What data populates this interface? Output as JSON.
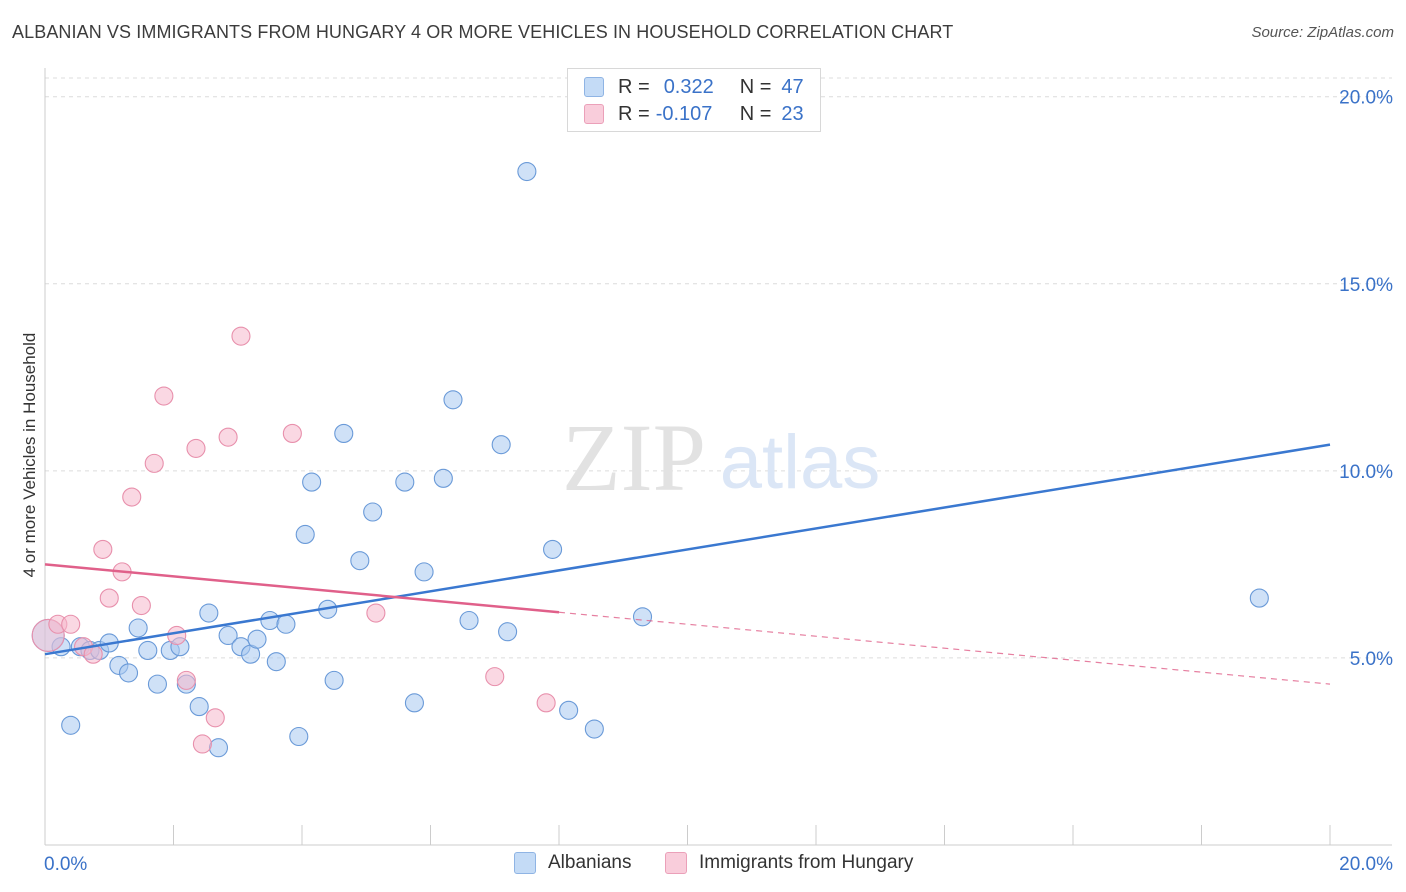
{
  "header": {
    "title": "ALBANIAN VS IMMIGRANTS FROM HUNGARY 4 OR MORE VEHICLES IN HOUSEHOLD CORRELATION CHART",
    "source": "Source: ZipAtlas.com"
  },
  "watermark": {
    "zip": "ZIP",
    "atlas": "atlas"
  },
  "legend_top": {
    "rows": [
      {
        "r_label": "R =",
        "r_value": "0.322",
        "n_label": "N =",
        "n_value": "47",
        "color": "#a8c8f0"
      },
      {
        "r_label": "R =",
        "r_value": "-0.107",
        "n_label": "N =",
        "n_value": "23",
        "color": "#f5b8cc"
      }
    ]
  },
  "legend_bottom": {
    "items": [
      {
        "label": "Albanians",
        "color": "#a8c8f0"
      },
      {
        "label": "Immigrants from Hungary",
        "color": "#f5b8cc"
      }
    ]
  },
  "chart_data": {
    "type": "scatter",
    "ylabel": "4 or more Vehicles in Household",
    "xlim": [
      0,
      20
    ],
    "ylim": [
      0,
      20.5
    ],
    "x_tick_labels": [
      "0.0%",
      "20.0%"
    ],
    "y_ticks": [
      5,
      10,
      15,
      20
    ],
    "y_tick_labels": [
      "5.0%",
      "10.0%",
      "15.0%",
      "20.0%"
    ],
    "grid": true,
    "colors": {
      "albanians": "#3a78d0",
      "hungary": "#e0608a",
      "axis_text": "#3a72c8"
    },
    "series": [
      {
        "name": "Albanians",
        "color": "#a8c8f0",
        "stroke": "#6a9ad8",
        "points": [
          [
            0.25,
            5.3
          ],
          [
            0.4,
            3.2
          ],
          [
            0.55,
            5.3
          ],
          [
            0.7,
            5.2
          ],
          [
            0.85,
            5.2
          ],
          [
            1.0,
            5.4
          ],
          [
            1.15,
            4.8
          ],
          [
            1.3,
            4.6
          ],
          [
            1.45,
            5.8
          ],
          [
            1.6,
            5.2
          ],
          [
            1.75,
            4.3
          ],
          [
            1.95,
            5.2
          ],
          [
            2.1,
            5.3
          ],
          [
            2.2,
            4.3
          ],
          [
            2.4,
            3.7
          ],
          [
            2.55,
            6.2
          ],
          [
            2.7,
            2.6
          ],
          [
            2.85,
            5.6
          ],
          [
            3.05,
            5.3
          ],
          [
            3.2,
            5.1
          ],
          [
            3.3,
            5.5
          ],
          [
            3.5,
            6.0
          ],
          [
            3.6,
            4.9
          ],
          [
            3.75,
            5.9
          ],
          [
            3.95,
            2.9
          ],
          [
            4.05,
            8.3
          ],
          [
            4.15,
            9.7
          ],
          [
            4.4,
            6.3
          ],
          [
            4.5,
            4.4
          ],
          [
            4.65,
            11.0
          ],
          [
            4.9,
            7.6
          ],
          [
            5.1,
            8.9
          ],
          [
            5.6,
            9.7
          ],
          [
            5.75,
            3.8
          ],
          [
            5.9,
            7.3
          ],
          [
            6.2,
            9.8
          ],
          [
            6.35,
            11.9
          ],
          [
            6.6,
            6.0
          ],
          [
            7.1,
            10.7
          ],
          [
            7.2,
            5.7
          ],
          [
            7.5,
            18.0
          ],
          [
            7.9,
            7.9
          ],
          [
            8.15,
            3.6
          ],
          [
            8.55,
            3.1
          ],
          [
            9.3,
            6.1
          ],
          [
            18.9,
            6.6
          ],
          [
            0.05,
            5.6
          ]
        ]
      },
      {
        "name": "Immigrants from Hungary",
        "color": "#f5b8cc",
        "stroke": "#e890ac",
        "points": [
          [
            0.05,
            5.6
          ],
          [
            0.2,
            5.9
          ],
          [
            0.4,
            5.9
          ],
          [
            0.6,
            5.3
          ],
          [
            0.75,
            5.1
          ],
          [
            0.9,
            7.9
          ],
          [
            1.0,
            6.6
          ],
          [
            1.2,
            7.3
          ],
          [
            1.35,
            9.3
          ],
          [
            1.5,
            6.4
          ],
          [
            1.7,
            10.2
          ],
          [
            1.85,
            12.0
          ],
          [
            2.05,
            5.6
          ],
          [
            2.2,
            4.4
          ],
          [
            2.35,
            10.6
          ],
          [
            2.45,
            2.7
          ],
          [
            2.65,
            3.4
          ],
          [
            2.85,
            10.9
          ],
          [
            3.05,
            13.6
          ],
          [
            3.85,
            11.0
          ],
          [
            5.15,
            6.2
          ],
          [
            7.0,
            4.5
          ],
          [
            7.8,
            3.8
          ]
        ]
      }
    ],
    "trendlines": [
      {
        "series": "Albanians",
        "x0": 0,
        "y0": 5.1,
        "x1": 20,
        "y1": 10.7,
        "dashed_from": null
      },
      {
        "series": "Immigrants from Hungary",
        "x0": 0,
        "y0": 7.5,
        "x1": 20,
        "y1": 4.3,
        "dashed_from": 8.0
      }
    ]
  }
}
